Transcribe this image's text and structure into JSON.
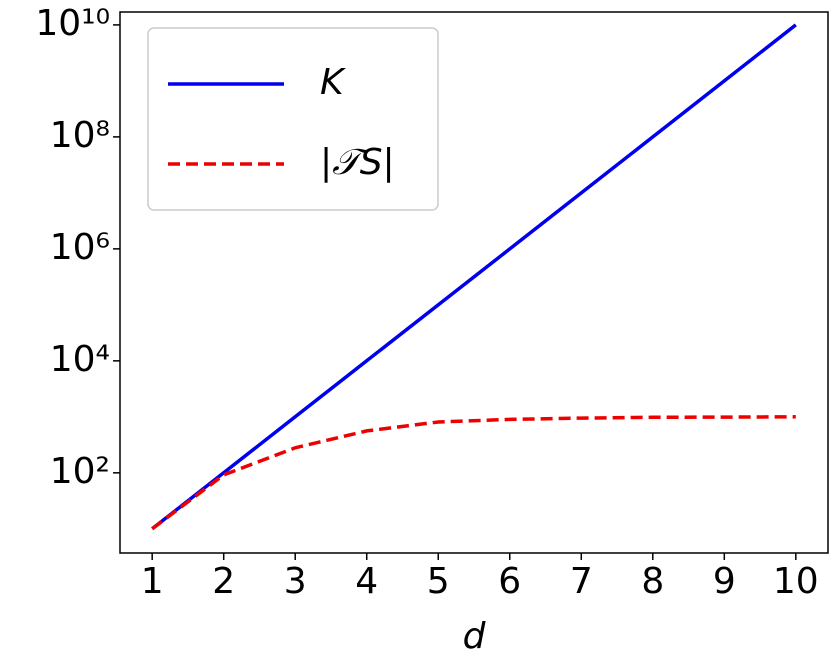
{
  "chart_data": {
    "type": "line",
    "x_label": "d",
    "x": [
      1,
      2,
      3,
      4,
      5,
      6,
      7,
      8,
      9,
      10
    ],
    "series": [
      {
        "name": "K",
        "color": "#0000ee",
        "dash": "solid",
        "values": [
          10,
          100,
          1000,
          10000,
          100000,
          1000000,
          10000000,
          100000000,
          1000000000,
          10000000000
        ]
      },
      {
        "name": "|𝒯S|",
        "color": "#ee0000",
        "dash": "dashed",
        "values": [
          10,
          92,
          280,
          560,
          810,
          900,
          950,
          980,
          990,
          1000
        ]
      }
    ],
    "xlim": [
      0.55,
      10.45
    ],
    "xticks": [
      1,
      2,
      3,
      4,
      5,
      6,
      7,
      8,
      9,
      10
    ],
    "ylim": [
      3.7,
      17000000000
    ],
    "yscale": "log",
    "yticks": [
      {
        "value": 100,
        "label": "10²"
      },
      {
        "value": 10000,
        "label": "10⁴"
      },
      {
        "value": 1000000,
        "label": "10⁶"
      },
      {
        "value": 100000000,
        "label": "10⁸"
      },
      {
        "value": 10000000000,
        "label": "10¹⁰"
      }
    ],
    "grid": false,
    "legend": "upper left"
  }
}
